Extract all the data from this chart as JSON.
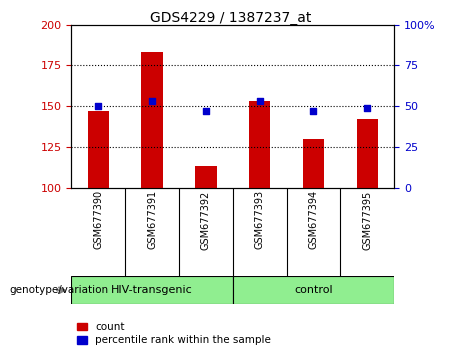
{
  "title": "GDS4229 / 1387237_at",
  "samples": [
    "GSM677390",
    "GSM677391",
    "GSM677392",
    "GSM677393",
    "GSM677394",
    "GSM677395"
  ],
  "red_values": [
    147,
    183,
    113,
    153,
    130,
    142
  ],
  "blue_values": [
    50,
    53,
    47,
    53,
    47,
    49
  ],
  "ylim_left": [
    100,
    200
  ],
  "ylim_right": [
    0,
    100
  ],
  "yticks_left": [
    100,
    125,
    150,
    175,
    200
  ],
  "yticks_right": [
    0,
    25,
    50,
    75,
    100
  ],
  "groups": [
    {
      "label": "HIV-transgenic",
      "indices": [
        0,
        1,
        2
      ],
      "color": "#90EE90"
    },
    {
      "label": "control",
      "indices": [
        3,
        4,
        5
      ],
      "color": "#90EE90"
    }
  ],
  "bar_color": "#CC0000",
  "dot_color": "#0000CC",
  "bg_color": "#FFFFFF",
  "tick_area_color": "#C8C8C8",
  "legend_count_label": "count",
  "legend_pct_label": "percentile rank within the sample",
  "genotype_label": "genotype/variation"
}
